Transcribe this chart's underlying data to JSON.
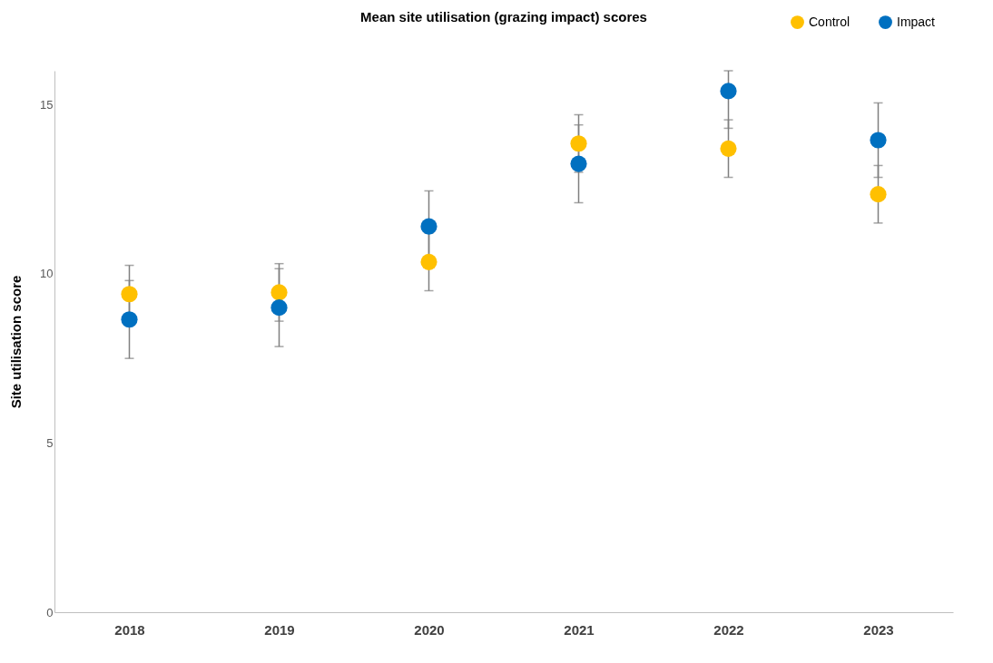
{
  "chart_data": {
    "type": "scatter",
    "title": "Mean site utilisation (grazing impact) scores",
    "ylabel": "Site utilisation score",
    "categories": [
      "2018",
      "2019",
      "2020",
      "2021",
      "2022",
      "2023"
    ],
    "series": [
      {
        "name": "Control",
        "color": "#ffc000",
        "values": [
          9.4,
          9.45,
          10.35,
          13.85,
          13.7,
          12.35
        ],
        "errors": [
          0.85,
          0.85,
          0.85,
          0.85,
          0.85,
          0.85
        ]
      },
      {
        "name": "Impact",
        "color": "#0070c0",
        "values": [
          8.65,
          9.0,
          11.4,
          13.25,
          15.4,
          13.95
        ],
        "errors": [
          1.15,
          1.15,
          1.05,
          1.15,
          [
            14.3,
            16.0
          ],
          1.1
        ]
      }
    ],
    "ylim": [
      0,
      16
    ],
    "yticks": [
      0,
      5,
      10,
      15
    ],
    "grid": false,
    "legend": "top right"
  }
}
